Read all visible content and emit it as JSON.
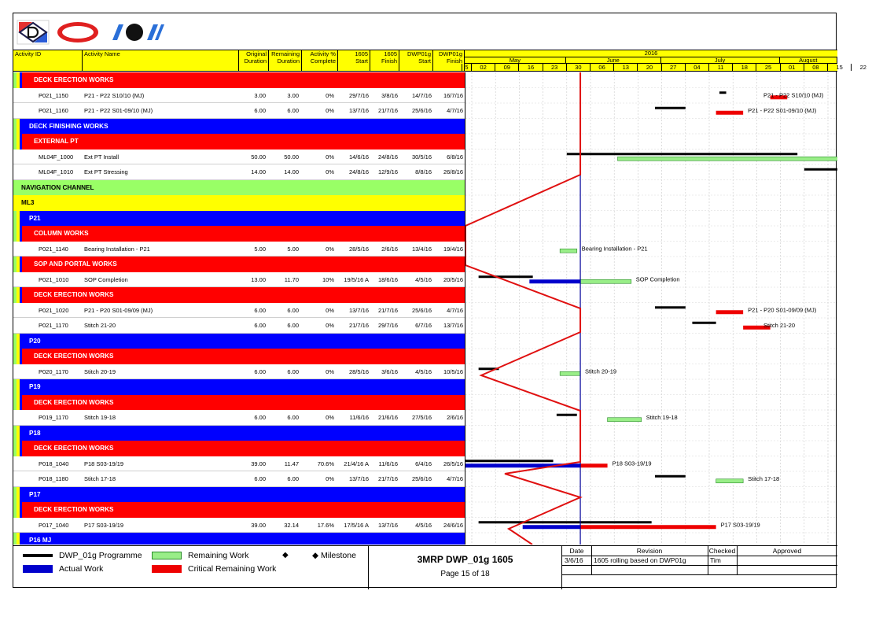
{
  "header": {
    "activity_id": "Activity ID",
    "activity_name": "Activity Name",
    "original_duration": "Original\nDuration",
    "remaining_duration": "Remaining\nDuration",
    "activity_pct": "Activity %\nComplete",
    "start_1605": "1605\nStart",
    "finish_1605": "1605\nFinish",
    "dwp_start": "DWP01g\nStart",
    "dwp_finish": "DWP01g\nFinish",
    "year": "2016",
    "months": [
      "May",
      "June",
      "July",
      "August"
    ],
    "weeks": [
      "5",
      "02",
      "09",
      "16",
      "23",
      "30",
      "06",
      "13",
      "20",
      "27",
      "04",
      "11",
      "18",
      "25",
      "01",
      "08",
      "15",
      "22"
    ]
  },
  "rows": [
    {
      "type": "band",
      "color": "red",
      "indent": 2,
      "text": "DECK ERECTION WORKS"
    },
    {
      "type": "act",
      "id": "P021_1150",
      "name": "P21 - P22 S10/10 (MJ)",
      "od": "3.00",
      "rd": "3.00",
      "pct": "0%",
      "s": "29/7/16",
      "f": "3/8/16",
      "ds": "14/7/16",
      "df": "16/7/16"
    },
    {
      "type": "act",
      "id": "P021_1160",
      "name": "P21 - P22 S01-09/10 (MJ)",
      "od": "6.00",
      "rd": "6.00",
      "pct": "0%",
      "s": "13/7/16",
      "f": "21/7/16",
      "ds": "25/6/16",
      "df": "4/7/16"
    },
    {
      "type": "band",
      "color": "blue",
      "indent": 1,
      "text": "DECK FINISHING WORKS"
    },
    {
      "type": "band",
      "color": "red",
      "indent": 2,
      "text": "EXTERNAL PT"
    },
    {
      "type": "act",
      "id": "ML04F_1000",
      "name": "Ext PT Install",
      "od": "50.00",
      "rd": "50.00",
      "pct": "0%",
      "s": "14/6/16",
      "f": "24/8/16",
      "ds": "30/5/16",
      "df": "6/8/16"
    },
    {
      "type": "act",
      "id": "ML04F_1010",
      "name": "Ext PT Stressing",
      "od": "14.00",
      "rd": "14.00",
      "pct": "0%",
      "s": "24/8/16",
      "f": "12/9/16",
      "ds": "8/8/16",
      "df": "26/8/16"
    },
    {
      "type": "band",
      "color": "green",
      "indent": 0,
      "text": "NAVIGATION CHANNEL"
    },
    {
      "type": "band",
      "color": "yellow",
      "indent": 0,
      "text": "ML3"
    },
    {
      "type": "band",
      "color": "blue",
      "indent": 1,
      "text": "P21"
    },
    {
      "type": "band",
      "color": "red",
      "indent": 2,
      "text": "COLUMN WORKS"
    },
    {
      "type": "act",
      "id": "P021_1140",
      "name": "Bearing Installation - P21",
      "od": "5.00",
      "rd": "5.00",
      "pct": "0%",
      "s": "28/5/16",
      "f": "2/6/16",
      "ds": "13/4/16",
      "df": "19/4/16"
    },
    {
      "type": "band",
      "color": "red",
      "indent": 2,
      "text": "SOP AND PORTAL WORKS"
    },
    {
      "type": "act",
      "id": "P021_1010",
      "name": "SOP Completion",
      "od": "13.00",
      "rd": "11.70",
      "pct": "10%",
      "s": "19/5/16 A",
      "f": "18/6/16",
      "ds": "4/5/16",
      "df": "20/5/16"
    },
    {
      "type": "band",
      "color": "red",
      "indent": 2,
      "text": "DECK ERECTION WORKS"
    },
    {
      "type": "act",
      "id": "P021_1020",
      "name": "P21 - P20 S01-09/09 (MJ)",
      "od": "6.00",
      "rd": "6.00",
      "pct": "0%",
      "s": "13/7/16",
      "f": "21/7/16",
      "ds": "25/6/16",
      "df": "4/7/16"
    },
    {
      "type": "act",
      "id": "P021_1170",
      "name": "Stitch 21-20",
      "od": "6.00",
      "rd": "6.00",
      "pct": "0%",
      "s": "21/7/16",
      "f": "29/7/16",
      "ds": "6/7/16",
      "df": "13/7/16"
    },
    {
      "type": "band",
      "color": "blue",
      "indent": 1,
      "text": "P20"
    },
    {
      "type": "band",
      "color": "red",
      "indent": 2,
      "text": "DECK ERECTION WORKS"
    },
    {
      "type": "act",
      "id": "P020_1170",
      "name": "Stitch 20-19",
      "od": "6.00",
      "rd": "6.00",
      "pct": "0%",
      "s": "28/5/16",
      "f": "3/6/16",
      "ds": "4/5/16",
      "df": "10/5/16"
    },
    {
      "type": "band",
      "color": "blue",
      "indent": 1,
      "text": "P19"
    },
    {
      "type": "band",
      "color": "red",
      "indent": 2,
      "text": "DECK ERECTION WORKS"
    },
    {
      "type": "act",
      "id": "P019_1170",
      "name": "Stitch 19-18",
      "od": "6.00",
      "rd": "6.00",
      "pct": "0%",
      "s": "11/6/16",
      "f": "21/6/16",
      "ds": "27/5/16",
      "df": "2/6/16"
    },
    {
      "type": "band",
      "color": "blue",
      "indent": 1,
      "text": "P18"
    },
    {
      "type": "band",
      "color": "red",
      "indent": 2,
      "text": "DECK ERECTION WORKS"
    },
    {
      "type": "act",
      "id": "P018_1040",
      "name": "P18 S03-19/19",
      "od": "39.00",
      "rd": "11.47",
      "pct": "70.6%",
      "s": "21/4/16 A",
      "f": "11/6/16",
      "ds": "6/4/16",
      "df": "26/5/16"
    },
    {
      "type": "act",
      "id": "P018_1180",
      "name": "Stitch 17-18",
      "od": "6.00",
      "rd": "6.00",
      "pct": "0%",
      "s": "13/7/16",
      "f": "21/7/16",
      "ds": "25/6/16",
      "df": "4/7/16"
    },
    {
      "type": "band",
      "color": "blue",
      "indent": 1,
      "text": "P17"
    },
    {
      "type": "band",
      "color": "red",
      "indent": 2,
      "text": "DECK ERECTION WORKS"
    },
    {
      "type": "act",
      "id": "P017_1040",
      "name": "P17 S03-19/19",
      "od": "39.00",
      "rd": "32.14",
      "pct": "17.6%",
      "s": "17/5/16 A",
      "f": "13/7/16",
      "ds": "4/5/16",
      "df": "24/6/16"
    },
    {
      "type": "band",
      "color": "blue",
      "indent": 1,
      "text": "P16 MJ"
    }
  ],
  "gantt_labels": [
    {
      "row": 1,
      "text": "P21 - P22 S10/10 (MJ)"
    },
    {
      "row": 2,
      "text": "P21 - P22 S01-09/10 (MJ)"
    },
    {
      "row": 11,
      "text": "Bearing Installation - P21"
    },
    {
      "row": 13,
      "text": "SOP Completion"
    },
    {
      "row": 15,
      "text": "P21 - P20 S01-09/09 (MJ)"
    },
    {
      "row": 16,
      "text": "Stitch 21-20"
    },
    {
      "row": 19,
      "text": "Stitch 20-19"
    },
    {
      "row": 22,
      "text": "Stitch 19-18"
    },
    {
      "row": 25,
      "text": "P18 S03-19/19"
    },
    {
      "row": 26,
      "text": "Stitch 17-18"
    },
    {
      "row": 29,
      "text": "P17 S03-19/19"
    }
  ],
  "legend": {
    "programme": "DWP_01g Programme",
    "actual": "Actual Work",
    "remaining": "Remaining Work",
    "critical": "Critical Remaining Work",
    "milestone_glyph": "◆",
    "milestone": "◆ Milestone"
  },
  "title_block": {
    "title": "3MRP DWP_01g 1605",
    "page": "Page 15 of 18"
  },
  "revision_table": {
    "headers": [
      "Date",
      "Revision",
      "Checked",
      "Approved"
    ],
    "row": [
      "3/6/16",
      "1605 rolling based on DWP01g",
      "Tim",
      ""
    ]
  },
  "colors": {
    "band_red": "#ff0000",
    "band_blue": "#0000ff",
    "band_green": "#99ff66",
    "band_yellow": "#ffff00",
    "bar_programme": "#000000",
    "bar_actual": "#0000cc",
    "bar_remaining": "#99ee88",
    "bar_critical": "#ee0000",
    "data_date_line": "#000099"
  }
}
